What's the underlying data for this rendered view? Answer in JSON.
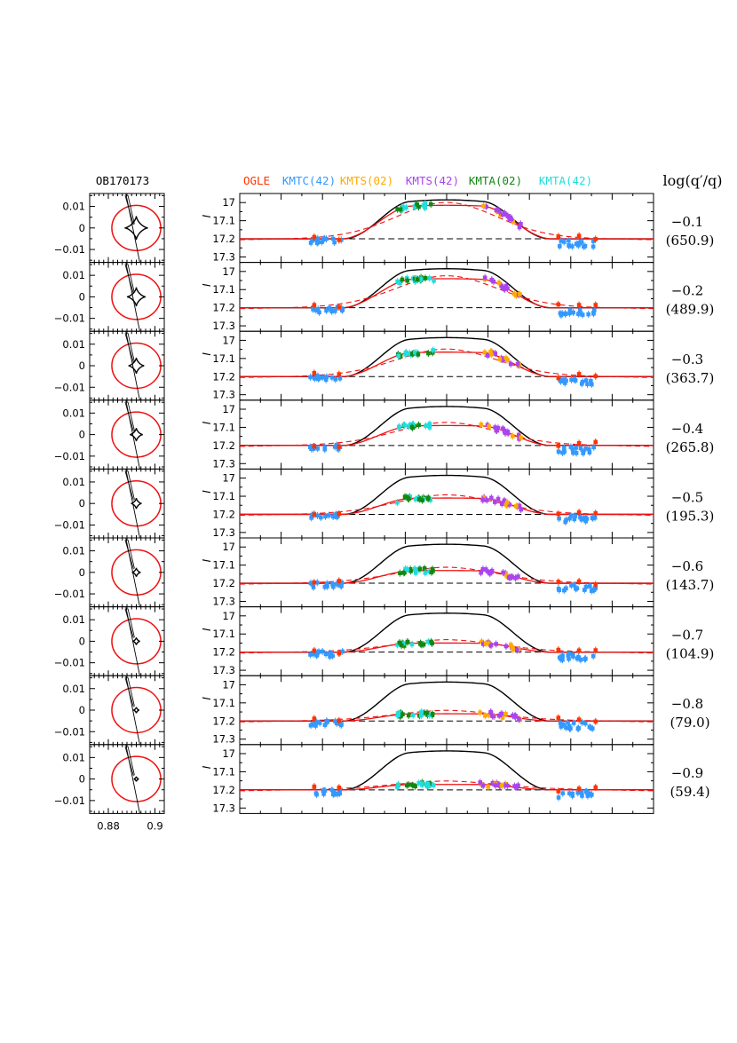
{
  "chart_data": {
    "type": "line",
    "event": "OB170173",
    "right_header": "log(q′/q)",
    "legend": [
      {
        "label": "OGLE",
        "color": "#ff3300"
      },
      {
        "label": "KMTC(42)",
        "color": "#3399ff"
      },
      {
        "label": "KMTS(02)",
        "color": "#ffaa00"
      },
      {
        "label": "KMTS(42)",
        "color": "#aa44ee"
      },
      {
        "label": "KMTA(02)",
        "color": "#118811"
      },
      {
        "label": "KMTA(42)",
        "color": "#22dddd"
      }
    ],
    "ylabel": "I",
    "yticks": [
      "17",
      "17.1",
      "17.2",
      "17.3"
    ],
    "ylim": [
      17.33,
      16.95
    ],
    "baseline_mag": 17.2,
    "caustic_yticks": [
      "0.01",
      "0",
      "−0.01"
    ],
    "caustic_xticks": [
      "0.88",
      "0.9"
    ],
    "caustic_xlim": [
      0.872,
      0.904
    ],
    "caustic_ylim": [
      -0.016,
      0.016
    ],
    "source_radius": 0.0105,
    "source_center": [
      0.892,
      0.0
    ],
    "panels": [
      {
        "logq": "−0.1",
        "chi2": "(650.9)",
        "peak_black": 16.985,
        "peak_red": 17.015,
        "caustic_size": 0.005
      },
      {
        "logq": "−0.2",
        "chi2": "(489.9)",
        "peak_black": 16.985,
        "peak_red": 17.04,
        "caustic_size": 0.004
      },
      {
        "logq": "−0.3",
        "chi2": "(363.7)",
        "peak_black": 16.985,
        "peak_red": 17.065,
        "caustic_size": 0.0034
      },
      {
        "logq": "−0.4",
        "chi2": "(265.8)",
        "peak_black": 16.985,
        "peak_red": 17.09,
        "caustic_size": 0.0028
      },
      {
        "logq": "−0.5",
        "chi2": "(195.3)",
        "peak_black": 16.985,
        "peak_red": 17.11,
        "caustic_size": 0.0023
      },
      {
        "logq": "−0.6",
        "chi2": "(143.7)",
        "peak_black": 16.985,
        "peak_red": 17.13,
        "caustic_size": 0.0019
      },
      {
        "logq": "−0.7",
        "chi2": "(104.9)",
        "peak_black": 16.985,
        "peak_red": 17.15,
        "caustic_size": 0.0016
      },
      {
        "logq": "−0.8",
        "chi2": "(79.0)",
        "peak_black": 16.985,
        "peak_red": 17.16,
        "caustic_size": 0.0013
      },
      {
        "logq": "−0.9",
        "chi2": "(59.4)",
        "peak_black": 16.985,
        "peak_red": 17.17,
        "caustic_size": 0.0011
      }
    ]
  }
}
